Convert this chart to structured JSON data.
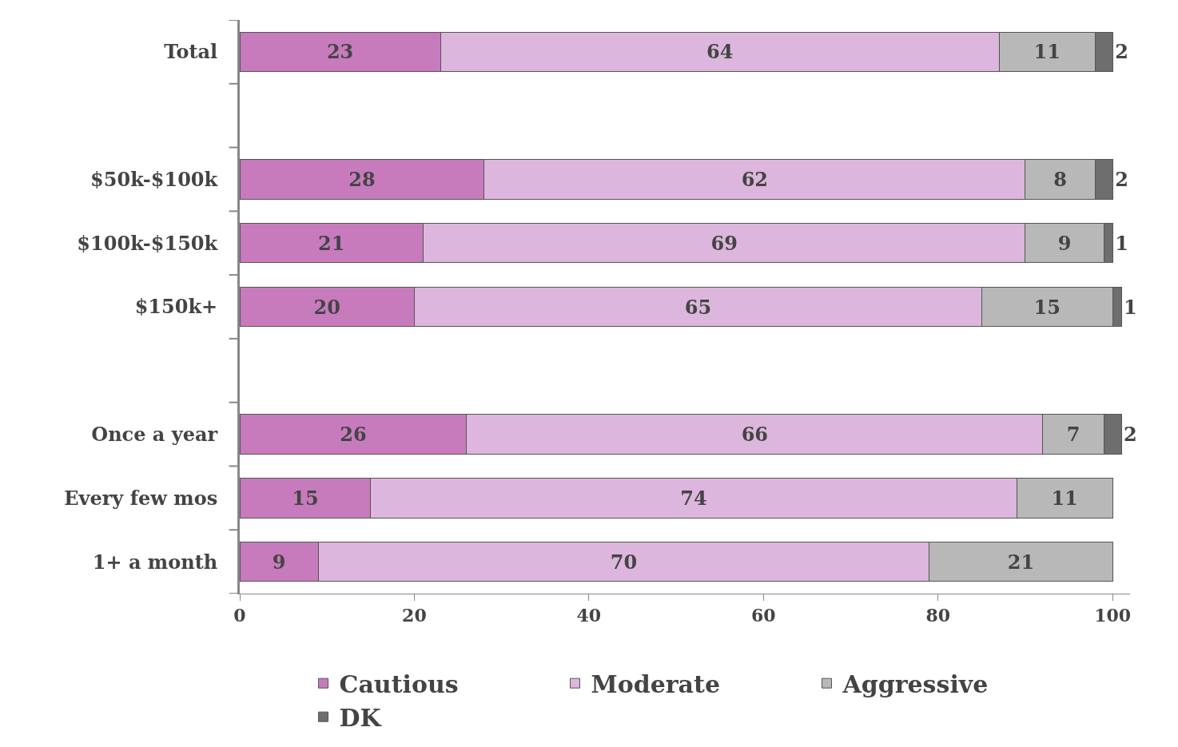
{
  "chart_data": {
    "type": "bar",
    "orientation": "horizontal",
    "stacked": true,
    "data_labels": true,
    "categories": [
      "Total",
      null,
      "$50k-$100k",
      "$100k-$150k",
      "$150k+",
      null,
      "Once a year",
      "Every few mos",
      "1+ a month"
    ],
    "series": [
      {
        "name": "Cautious",
        "color": "#c77bbd",
        "values": [
          23,
          null,
          28,
          21,
          20,
          null,
          26,
          15,
          9
        ]
      },
      {
        "name": "Moderate",
        "color": "#dcb6dc",
        "values": [
          64,
          null,
          62,
          69,
          65,
          null,
          66,
          74,
          70
        ]
      },
      {
        "name": "Aggressive",
        "color": "#b8b8b8",
        "values": [
          11,
          null,
          8,
          9,
          15,
          null,
          7,
          11,
          21
        ]
      },
      {
        "name": "DK",
        "color": "#6e6e6e",
        "values": [
          2,
          null,
          2,
          1,
          1,
          null,
          2,
          null,
          null
        ]
      }
    ],
    "xlim": [
      0,
      102
    ],
    "xticks": [
      0,
      20,
      40,
      60,
      80,
      100
    ],
    "grid": false,
    "legend": "bottom"
  }
}
